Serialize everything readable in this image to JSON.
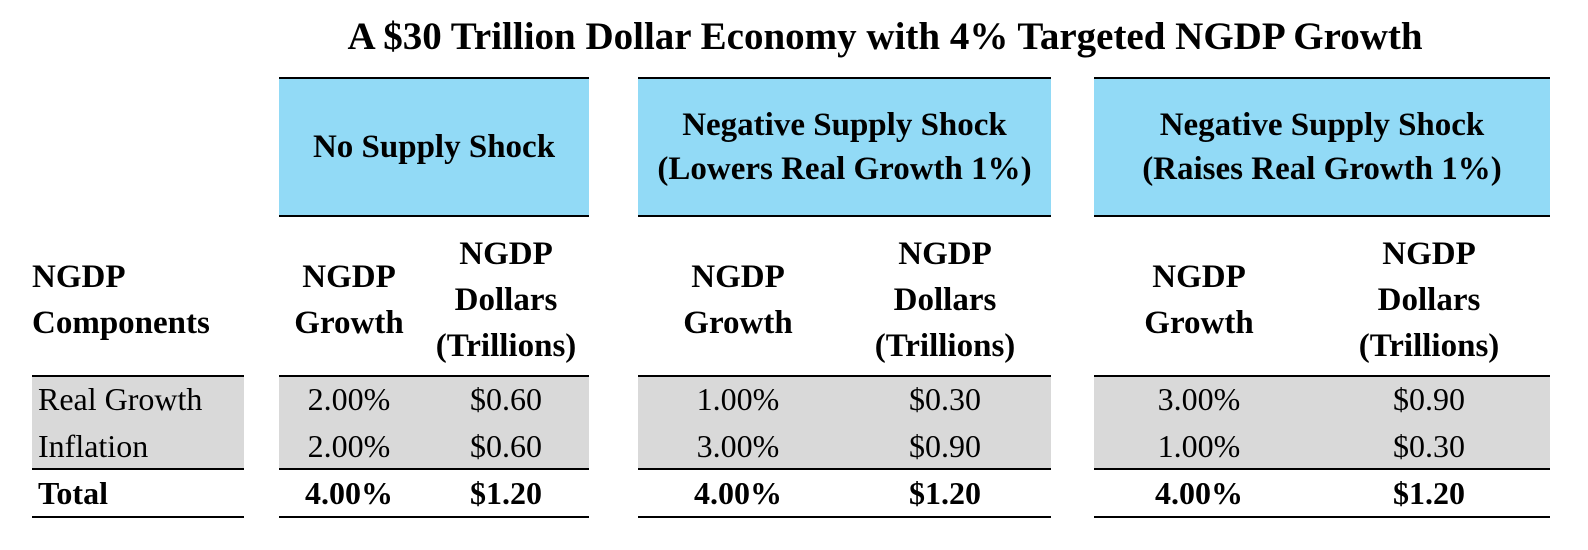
{
  "chart_data": {
    "type": "table",
    "title": "A $30 Trillion Dollar Economy with 4% Targeted NGDP Growth",
    "row_header_label": [
      "NGDP",
      "Components"
    ],
    "column_headers": {
      "growth": [
        "NGDP",
        "Growth"
      ],
      "dollars": [
        "NGDP",
        "Dollars",
        "(Trillions)"
      ]
    },
    "scenarios": [
      {
        "name_lines": [
          "No Supply Shock"
        ],
        "rows": [
          {
            "growth": "2.00%",
            "dollars": "$0.60"
          },
          {
            "growth": "2.00%",
            "dollars": "$0.60"
          },
          {
            "growth": "4.00%",
            "dollars": "$1.20"
          }
        ]
      },
      {
        "name_lines": [
          "Negative Supply Shock",
          "(Lowers Real Growth 1%)"
        ],
        "rows": [
          {
            "growth": "1.00%",
            "dollars": "$0.30"
          },
          {
            "growth": "3.00%",
            "dollars": "$0.90"
          },
          {
            "growth": "4.00%",
            "dollars": "$1.20"
          }
        ]
      },
      {
        "name_lines": [
          "Negative Supply Shock",
          "(Raises Real Growth 1%)"
        ],
        "rows": [
          {
            "growth": "3.00%",
            "dollars": "$0.90"
          },
          {
            "growth": "1.00%",
            "dollars": "$0.30"
          },
          {
            "growth": "4.00%",
            "dollars": "$1.20"
          }
        ]
      }
    ],
    "row_labels": [
      "Real Growth",
      "Inflation",
      "Total"
    ],
    "colors": {
      "header_fill": "#92daf6",
      "band_fill": "#d9d9d9"
    }
  }
}
